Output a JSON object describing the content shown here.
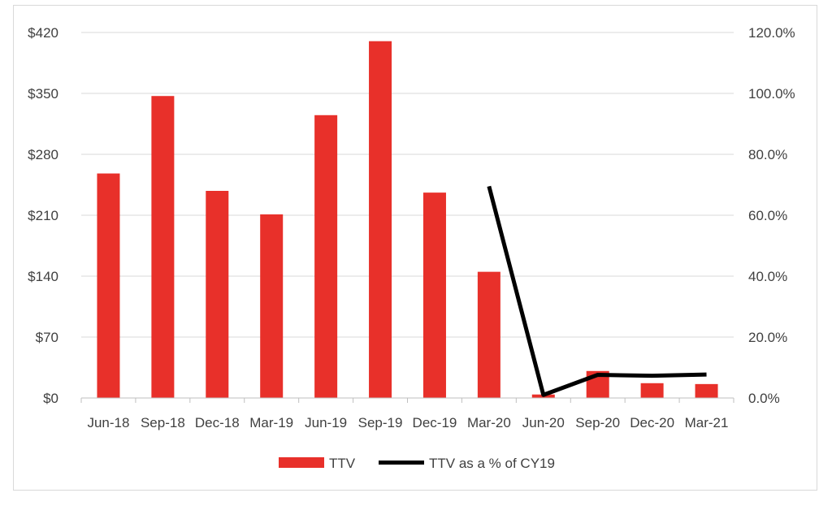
{
  "chart_data": {
    "type": "bar",
    "categories": [
      "Jun-18",
      "Sep-18",
      "Dec-18",
      "Mar-19",
      "Jun-19",
      "Sep-19",
      "Dec-19",
      "Mar-20",
      "Jun-20",
      "Sep-20",
      "Dec-20",
      "Mar-21"
    ],
    "series": [
      {
        "name": "TTV",
        "type": "bar",
        "axis": "left",
        "color": "#e8302a",
        "values": [
          258,
          347,
          238,
          211,
          325,
          410,
          236,
          145,
          4,
          31,
          17,
          16
        ]
      },
      {
        "name": "TTV as a % of CY19",
        "type": "line",
        "axis": "right",
        "color": "#000000",
        "values": [
          null,
          null,
          null,
          null,
          null,
          null,
          null,
          69.5,
          1.0,
          7.6,
          7.3,
          7.7
        ]
      }
    ],
    "y_left": {
      "ticks": [
        0,
        70,
        140,
        210,
        280,
        350,
        420
      ],
      "tick_labels": [
        "$0",
        "$70",
        "$140",
        "$210",
        "$280",
        "$350",
        "$420"
      ],
      "ylim": [
        0,
        420
      ]
    },
    "y_right": {
      "ticks": [
        0,
        20,
        40,
        60,
        80,
        100,
        120
      ],
      "tick_labels": [
        "0.0%",
        "20.0%",
        "40.0%",
        "60.0%",
        "80.0%",
        "100.0%",
        "120.0%"
      ],
      "ylim": [
        0,
        120
      ]
    },
    "title": "",
    "xlabel": "",
    "ylabel": "",
    "grid": true,
    "legend": "bottom-center"
  }
}
